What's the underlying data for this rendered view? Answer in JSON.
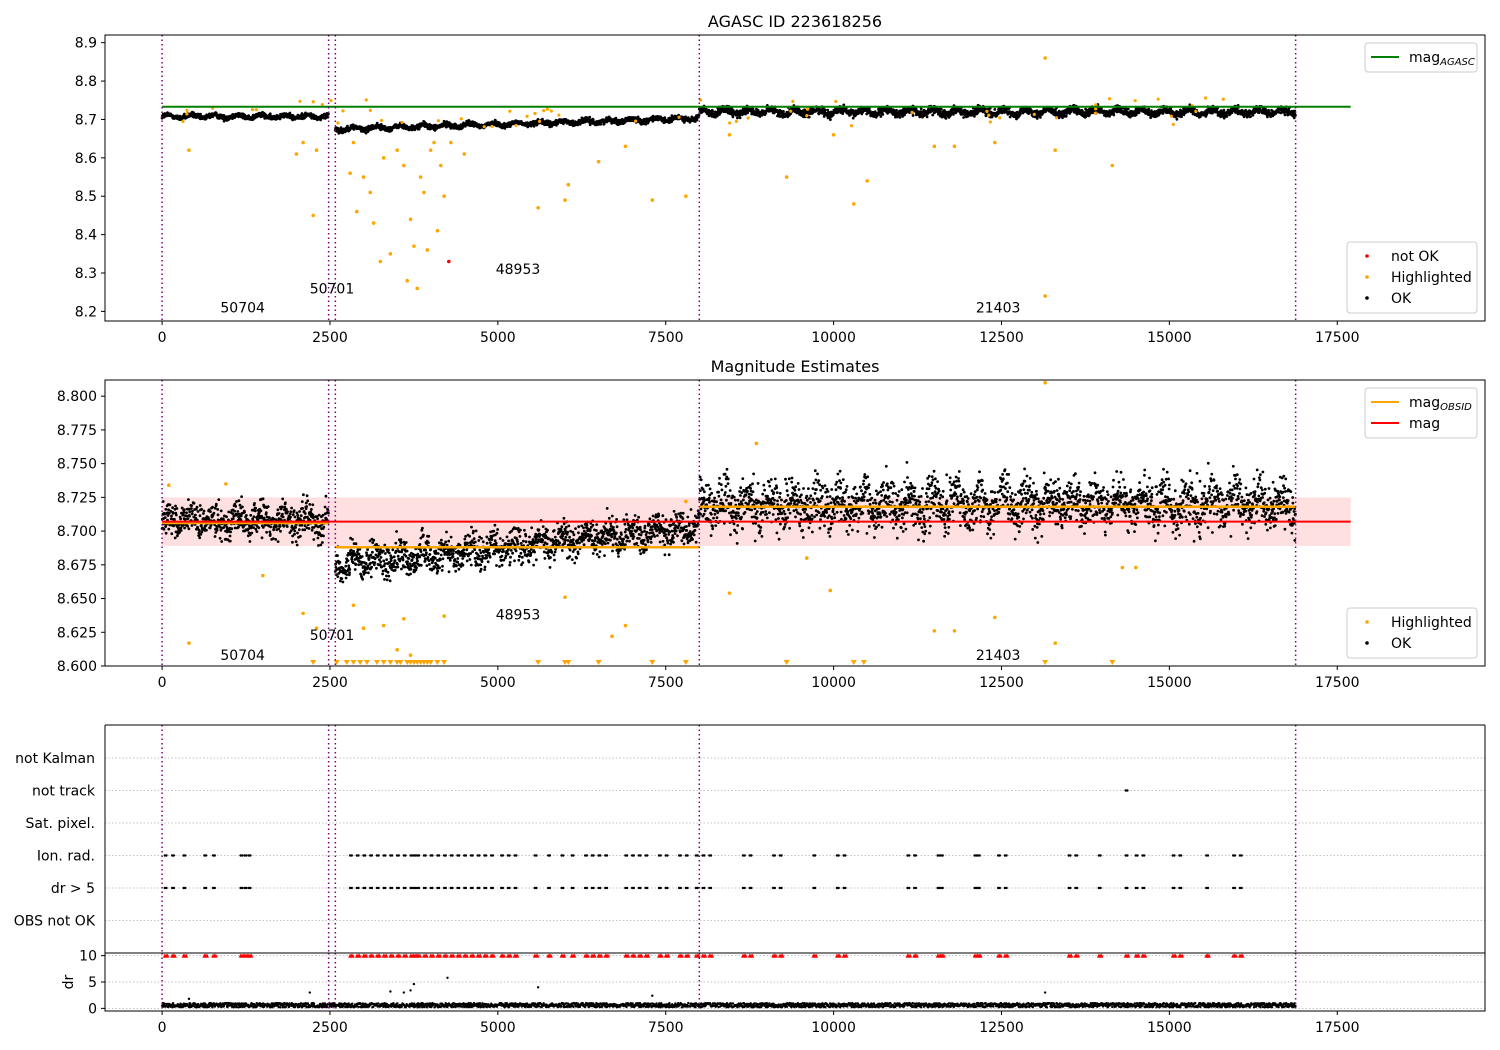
{
  "figure": {
    "title_top": "AGASC ID 223618256",
    "title_middle": "Magnitude Estimates"
  },
  "colors": {
    "ok": "#000000",
    "highlighted": "#ffa500",
    "not_ok": "#ff0000",
    "agasc_line": "#008000",
    "mag_line": "#ff0000",
    "obsid_line": "#ffa500",
    "obs_boundary": "#800080",
    "band": "#ffe0e0",
    "grid": "#b0b0b0"
  },
  "obs_boundaries": [
    0,
    2480,
    2580,
    8000,
    16880
  ],
  "chart_data": [
    {
      "id": "agasc",
      "type": "scatter",
      "title": "AGASC ID 223618256",
      "xlim": [
        -850,
        19700
      ],
      "ylim": [
        8.175,
        8.92
      ],
      "xticks": [
        0,
        2500,
        5000,
        7500,
        10000,
        12500,
        15000,
        17500
      ],
      "xtick_labels": [
        "0",
        "2500",
        "5000",
        "7500",
        "10000",
        "12500",
        "15000",
        "17500"
      ],
      "yticks": [
        8.2,
        8.3,
        8.4,
        8.5,
        8.6,
        8.7,
        8.8,
        8.9
      ],
      "ytick_labels": [
        "8.2",
        "8.3",
        "8.4",
        "8.5",
        "8.6",
        "8.7",
        "8.8",
        "8.9"
      ],
      "mag_agasc": 8.733,
      "mag_agasc_x_range": [
        0,
        17700
      ],
      "obs_labels": [
        {
          "text": "50704",
          "x": 1200,
          "y": 8.21
        },
        {
          "text": "50701",
          "x": 2530,
          "y": 8.26
        },
        {
          "text": "48953",
          "x": 5300,
          "y": 8.31
        },
        {
          "text": "21403",
          "x": 12450,
          "y": 8.21
        }
      ],
      "ok_segments": [
        {
          "x": [
            0,
            2480
          ],
          "center": 8.708,
          "spread": 0.012
        },
        {
          "x": [
            2580,
            8000
          ],
          "center_start": 8.675,
          "center_end": 8.703,
          "spread": 0.012
        },
        {
          "x": [
            8000,
            16880
          ],
          "center": 8.72,
          "spread": 0.018
        }
      ],
      "highlighted_points": [
        {
          "x": 400,
          "y": 8.62
        },
        {
          "x": 2000,
          "y": 8.61
        },
        {
          "x": 2100,
          "y": 8.64
        },
        {
          "x": 2250,
          "y": 8.45
        },
        {
          "x": 2300,
          "y": 8.62
        },
        {
          "x": 2800,
          "y": 8.56
        },
        {
          "x": 2850,
          "y": 8.64
        },
        {
          "x": 2900,
          "y": 8.46
        },
        {
          "x": 3000,
          "y": 8.55
        },
        {
          "x": 3100,
          "y": 8.51
        },
        {
          "x": 3150,
          "y": 8.43
        },
        {
          "x": 3250,
          "y": 8.33
        },
        {
          "x": 3300,
          "y": 8.6
        },
        {
          "x": 3400,
          "y": 8.35
        },
        {
          "x": 3500,
          "y": 8.62
        },
        {
          "x": 3600,
          "y": 8.58
        },
        {
          "x": 3650,
          "y": 8.28
        },
        {
          "x": 3700,
          "y": 8.44
        },
        {
          "x": 3750,
          "y": 8.37
        },
        {
          "x": 3800,
          "y": 8.26
        },
        {
          "x": 3850,
          "y": 8.55
        },
        {
          "x": 3900,
          "y": 8.51
        },
        {
          "x": 3950,
          "y": 8.36
        },
        {
          "x": 4000,
          "y": 8.62
        },
        {
          "x": 4050,
          "y": 8.64
        },
        {
          "x": 4100,
          "y": 8.41
        },
        {
          "x": 4150,
          "y": 8.58
        },
        {
          "x": 4200,
          "y": 8.5
        },
        {
          "x": 4300,
          "y": 8.64
        },
        {
          "x": 4500,
          "y": 8.61
        },
        {
          "x": 5600,
          "y": 8.47
        },
        {
          "x": 6000,
          "y": 8.49
        },
        {
          "x": 6050,
          "y": 8.53
        },
        {
          "x": 6500,
          "y": 8.59
        },
        {
          "x": 6900,
          "y": 8.63
        },
        {
          "x": 7300,
          "y": 8.49
        },
        {
          "x": 7800,
          "y": 8.5
        },
        {
          "x": 8450,
          "y": 8.66
        },
        {
          "x": 9300,
          "y": 8.55
        },
        {
          "x": 10000,
          "y": 8.66
        },
        {
          "x": 10300,
          "y": 8.48
        },
        {
          "x": 10500,
          "y": 8.54
        },
        {
          "x": 11500,
          "y": 8.63
        },
        {
          "x": 11800,
          "y": 8.63
        },
        {
          "x": 12400,
          "y": 8.64
        },
        {
          "x": 13150,
          "y": 8.86
        },
        {
          "x": 13150,
          "y": 8.24
        },
        {
          "x": 13300,
          "y": 8.62
        },
        {
          "x": 14150,
          "y": 8.58
        }
      ],
      "not_ok_points": [
        {
          "x": 4270,
          "y": 8.33
        }
      ],
      "legends": [
        {
          "position": "top-right",
          "entries": [
            {
              "label": "mag",
              "sub": "AGASC",
              "marker": "line",
              "color": "#008000"
            }
          ]
        },
        {
          "position": "bottom-right",
          "entries": [
            {
              "label": "not OK",
              "marker": "dot",
              "color": "#ff0000"
            },
            {
              "label": "Highlighted",
              "marker": "dot",
              "color": "#ffa500"
            },
            {
              "label": "OK",
              "marker": "dot",
              "color": "#000000"
            }
          ]
        }
      ]
    },
    {
      "id": "estimates",
      "type": "scatter",
      "title": "Magnitude Estimates",
      "xlim": [
        -850,
        19700
      ],
      "ylim": [
        8.6,
        8.812
      ],
      "xticks": [
        0,
        2500,
        5000,
        7500,
        10000,
        12500,
        15000,
        17500
      ],
      "xtick_labels": [
        "0",
        "2500",
        "5000",
        "7500",
        "10000",
        "12500",
        "15000",
        "17500"
      ],
      "yticks": [
        8.6,
        8.625,
        8.65,
        8.675,
        8.7,
        8.725,
        8.75,
        8.775,
        8.8
      ],
      "ytick_labels": [
        "8.600",
        "8.625",
        "8.650",
        "8.675",
        "8.700",
        "8.725",
        "8.750",
        "8.775",
        "8.800"
      ],
      "mag": 8.707,
      "mag_band": [
        8.689,
        8.725
      ],
      "mag_x_range": [
        0,
        17700
      ],
      "mag_obsid": [
        {
          "x": [
            0,
            2480
          ],
          "y": 8.706
        },
        {
          "x": [
            2580,
            8000
          ],
          "y": 8.688
        },
        {
          "x": [
            8000,
            16880
          ],
          "y": 8.718
        }
      ],
      "obs_labels": [
        {
          "text": "50704",
          "x": 1200,
          "y": 8.608
        },
        {
          "text": "50701",
          "x": 2530,
          "y": 8.623
        },
        {
          "text": "48953",
          "x": 5300,
          "y": 8.638
        },
        {
          "text": "21403",
          "x": 12450,
          "y": 8.608
        }
      ],
      "ok_segments": [
        {
          "x": [
            0,
            2480
          ],
          "center": 8.708,
          "spread": 0.012
        },
        {
          "x": [
            2580,
            8000
          ],
          "center_start": 8.675,
          "center_end": 8.703,
          "spread": 0.012
        },
        {
          "x": [
            8000,
            16880
          ],
          "center": 8.72,
          "spread": 0.018
        }
      ],
      "highlighted_points": [
        {
          "x": 100,
          "y": 8.734
        },
        {
          "x": 950,
          "y": 8.735
        },
        {
          "x": 1500,
          "y": 8.667
        },
        {
          "x": 400,
          "y": 8.617
        },
        {
          "x": 2100,
          "y": 8.639
        },
        {
          "x": 2300,
          "y": 8.628
        },
        {
          "x": 2850,
          "y": 8.645
        },
        {
          "x": 3000,
          "y": 8.628
        },
        {
          "x": 3300,
          "y": 8.63
        },
        {
          "x": 3500,
          "y": 8.612
        },
        {
          "x": 3600,
          "y": 8.635
        },
        {
          "x": 3700,
          "y": 8.608
        },
        {
          "x": 4200,
          "y": 8.637
        },
        {
          "x": 6000,
          "y": 8.651
        },
        {
          "x": 6700,
          "y": 8.622
        },
        {
          "x": 6900,
          "y": 8.63
        },
        {
          "x": 7800,
          "y": 8.722
        },
        {
          "x": 8450,
          "y": 8.654
        },
        {
          "x": 8850,
          "y": 8.765
        },
        {
          "x": 9600,
          "y": 8.68
        },
        {
          "x": 9950,
          "y": 8.656
        },
        {
          "x": 11500,
          "y": 8.626
        },
        {
          "x": 11800,
          "y": 8.626
        },
        {
          "x": 12400,
          "y": 8.636
        },
        {
          "x": 13150,
          "y": 8.81
        },
        {
          "x": 13300,
          "y": 8.617
        },
        {
          "x": 14300,
          "y": 8.673
        },
        {
          "x": 14500,
          "y": 8.673
        }
      ],
      "clipped_low_x": [
        2250,
        2600,
        2750,
        2850,
        2950,
        3050,
        3200,
        3300,
        3400,
        3500,
        3550,
        3650,
        3700,
        3750,
        3800,
        3850,
        3900,
        3950,
        4000,
        4100,
        4200,
        5600,
        6000,
        6050,
        6500,
        7300,
        7800,
        9300,
        10300,
        10450,
        13150,
        14150
      ],
      "legends": [
        {
          "position": "top-right",
          "entries": [
            {
              "label": "mag",
              "sub": "OBSID",
              "marker": "line",
              "color": "#ffa500"
            },
            {
              "label": "mag",
              "marker": "line",
              "color": "#ff0000"
            }
          ]
        },
        {
          "position": "bottom-right",
          "entries": [
            {
              "label": "Highlighted",
              "marker": "dot",
              "color": "#ffa500"
            },
            {
              "label": "OK",
              "marker": "dot",
              "color": "#000000"
            }
          ]
        }
      ]
    },
    {
      "id": "flags",
      "type": "scatter",
      "xlim": [
        -850,
        19700
      ],
      "flags": [
        "not Kalman",
        "not track",
        "Sat. pixel.",
        "Ion. rad.",
        "dr > 5",
        "OBS not OK"
      ],
      "flag_points": {
        "not track": [
          14350
        ],
        "Ion. rad.": [
          40,
          150,
          320,
          630,
          760,
          1170,
          1230,
          1290,
          2800,
          2900,
          3000,
          3100,
          3200,
          3300,
          3400,
          3500,
          3600,
          3700,
          3750,
          3800,
          3900,
          4000,
          4100,
          4200,
          4300,
          4400,
          4500,
          4600,
          4700,
          4800,
          4900,
          5050,
          5150,
          5250,
          5550,
          5750,
          5950,
          6100,
          6300,
          6400,
          6500,
          6600,
          6900,
          7000,
          7100,
          7200,
          7400,
          7500,
          7700,
          7800,
          7950,
          8050,
          8150,
          8650,
          8750,
          9100,
          9200,
          9700,
          10050,
          10150,
          11100,
          11200,
          11550,
          11600,
          12100,
          12150,
          12450,
          12550,
          13500,
          13600,
          13950,
          14350,
          14500,
          14600,
          15050,
          15150,
          15550,
          15950,
          16050
        ],
        "dr > 5": [
          40,
          150,
          320,
          630,
          760,
          1170,
          1230,
          1290,
          2800,
          2900,
          3000,
          3100,
          3200,
          3300,
          3400,
          3500,
          3600,
          3700,
          3750,
          3800,
          3900,
          4000,
          4100,
          4200,
          4300,
          4400,
          4500,
          4600,
          4700,
          4800,
          4900,
          5050,
          5150,
          5250,
          5550,
          5750,
          5950,
          6100,
          6300,
          6400,
          6500,
          6600,
          6900,
          7000,
          7100,
          7200,
          7400,
          7500,
          7700,
          7800,
          7950,
          8050,
          8150,
          8650,
          8750,
          9100,
          9200,
          9700,
          10050,
          10150,
          11100,
          11200,
          11550,
          11600,
          12100,
          12150,
          12450,
          12550,
          13500,
          13600,
          13950,
          14350,
          14500,
          14600,
          15050,
          15150,
          15550,
          15950,
          16050
        ]
      }
    },
    {
      "id": "dr",
      "type": "scatter",
      "ylabel": "dr",
      "xlim": [
        -850,
        19700
      ],
      "ylim": [
        -0.5,
        10.5
      ],
      "yticks": [
        0,
        5,
        10
      ],
      "ytick_labels": [
        "0",
        "5",
        "10"
      ],
      "xticks": [
        0,
        2500,
        5000,
        7500,
        10000,
        12500,
        15000,
        17500
      ],
      "xtick_labels": [
        "0",
        "2500",
        "5000",
        "7500",
        "10000",
        "12500",
        "15000",
        "17500"
      ],
      "clip_value": 10,
      "base_band": [
        0.2,
        1.0
      ],
      "scattered_points": [
        {
          "x": 400,
          "y": 1.8
        },
        {
          "x": 2200,
          "y": 3.0
        },
        {
          "x": 3400,
          "y": 3.2
        },
        {
          "x": 3600,
          "y": 3.0
        },
        {
          "x": 3700,
          "y": 3.4
        },
        {
          "x": 3750,
          "y": 4.6
        },
        {
          "x": 4250,
          "y": 5.8
        },
        {
          "x": 5600,
          "y": 4.0
        },
        {
          "x": 7300,
          "y": 2.4
        },
        {
          "x": 13150,
          "y": 3.0
        }
      ]
    }
  ]
}
